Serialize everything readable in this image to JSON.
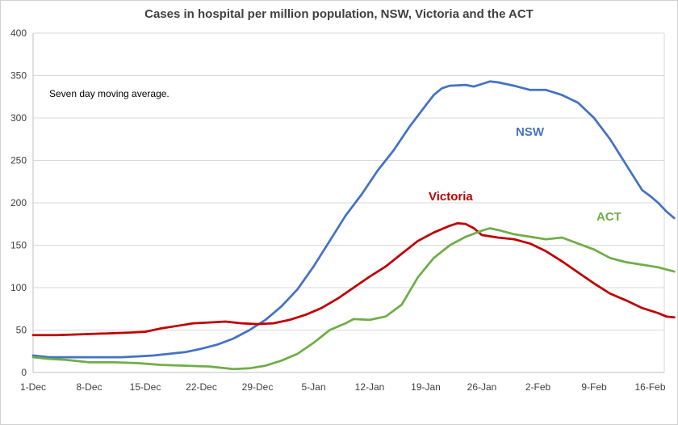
{
  "chart_data": {
    "type": "line",
    "title": "Cases in hospital per million population, NSW, Victoria and the ACT",
    "annotation": "Seven day moving average.",
    "xlabel": "",
    "ylabel": "",
    "ylim": [
      0,
      400
    ],
    "yticks": [
      0,
      50,
      100,
      150,
      200,
      250,
      300,
      350,
      400
    ],
    "grid": true,
    "legend": "inline labels",
    "x_tick_labels": [
      "1-Dec",
      "8-Dec",
      "15-Dec",
      "22-Dec",
      "29-Dec",
      "5-Jan",
      "12-Jan",
      "19-Jan",
      "26-Jan",
      "2-Feb",
      "9-Feb",
      "16-Feb"
    ],
    "x_tick_dates": [
      "2021-12-01",
      "2021-12-08",
      "2021-12-15",
      "2021-12-22",
      "2021-12-29",
      "2022-01-05",
      "2022-01-12",
      "2022-01-19",
      "2022-01-26",
      "2022-02-02",
      "2022-02-09",
      "2022-02-16"
    ],
    "x_range": [
      "2021-12-01",
      "2022-02-18"
    ],
    "series": [
      {
        "name": "NSW",
        "color": "#4472C4",
        "points": [
          [
            "2021-12-01",
            20
          ],
          [
            "2021-12-03",
            18
          ],
          [
            "2021-12-05",
            18
          ],
          [
            "2021-12-08",
            18
          ],
          [
            "2021-12-10",
            18
          ],
          [
            "2021-12-12",
            18
          ],
          [
            "2021-12-14",
            19
          ],
          [
            "2021-12-16",
            20
          ],
          [
            "2021-12-18",
            22
          ],
          [
            "2021-12-20",
            24
          ],
          [
            "2021-12-22",
            28
          ],
          [
            "2021-12-24",
            33
          ],
          [
            "2021-12-26",
            40
          ],
          [
            "2021-12-28",
            50
          ],
          [
            "2021-12-30",
            62
          ],
          [
            "2022-01-01",
            78
          ],
          [
            "2022-01-03",
            98
          ],
          [
            "2022-01-05",
            125
          ],
          [
            "2022-01-07",
            155
          ],
          [
            "2022-01-09",
            185
          ],
          [
            "2022-01-11",
            210
          ],
          [
            "2022-01-13",
            238
          ],
          [
            "2022-01-15",
            262
          ],
          [
            "2022-01-17",
            290
          ],
          [
            "2022-01-19",
            315
          ],
          [
            "2022-01-20",
            327
          ],
          [
            "2022-01-21",
            335
          ],
          [
            "2022-01-22",
            338
          ],
          [
            "2022-01-24",
            339
          ],
          [
            "2022-01-25",
            337
          ],
          [
            "2022-01-26",
            340
          ],
          [
            "2022-01-27",
            343
          ],
          [
            "2022-01-28",
            342
          ],
          [
            "2022-01-30",
            338
          ],
          [
            "2022-02-01",
            333
          ],
          [
            "2022-02-03",
            333
          ],
          [
            "2022-02-05",
            327
          ],
          [
            "2022-02-07",
            318
          ],
          [
            "2022-02-09",
            300
          ],
          [
            "2022-02-11",
            275
          ],
          [
            "2022-02-13",
            245
          ],
          [
            "2022-02-15",
            215
          ],
          [
            "2022-02-16",
            208
          ],
          [
            "2022-02-17",
            200
          ],
          [
            "2022-02-18",
            190
          ],
          [
            "2022-02-19",
            182
          ]
        ]
      },
      {
        "name": "Victoria",
        "color": "#C00000",
        "points": [
          [
            "2021-12-01",
            44
          ],
          [
            "2021-12-04",
            44
          ],
          [
            "2021-12-07",
            45
          ],
          [
            "2021-12-10",
            46
          ],
          [
            "2021-12-13",
            47
          ],
          [
            "2021-12-15",
            48
          ],
          [
            "2021-12-17",
            52
          ],
          [
            "2021-12-19",
            55
          ],
          [
            "2021-12-21",
            58
          ],
          [
            "2021-12-23",
            59
          ],
          [
            "2021-12-25",
            60
          ],
          [
            "2021-12-27",
            58
          ],
          [
            "2021-12-29",
            57
          ],
          [
            "2021-12-31",
            58
          ],
          [
            "2022-01-02",
            62
          ],
          [
            "2022-01-04",
            68
          ],
          [
            "2022-01-06",
            76
          ],
          [
            "2022-01-08",
            87
          ],
          [
            "2022-01-10",
            100
          ],
          [
            "2022-01-12",
            113
          ],
          [
            "2022-01-14",
            125
          ],
          [
            "2022-01-16",
            140
          ],
          [
            "2022-01-18",
            155
          ],
          [
            "2022-01-20",
            165
          ],
          [
            "2022-01-22",
            173
          ],
          [
            "2022-01-23",
            176
          ],
          [
            "2022-01-24",
            175
          ],
          [
            "2022-01-25",
            170
          ],
          [
            "2022-01-26",
            162
          ],
          [
            "2022-01-28",
            159
          ],
          [
            "2022-01-30",
            157
          ],
          [
            "2022-02-01",
            152
          ],
          [
            "2022-02-03",
            143
          ],
          [
            "2022-02-05",
            131
          ],
          [
            "2022-02-07",
            118
          ],
          [
            "2022-02-09",
            105
          ],
          [
            "2022-02-11",
            93
          ],
          [
            "2022-02-13",
            85
          ],
          [
            "2022-02-15",
            76
          ],
          [
            "2022-02-17",
            70
          ],
          [
            "2022-02-18",
            66
          ],
          [
            "2022-02-19",
            65
          ]
        ]
      },
      {
        "name": "ACT",
        "color": "#70AD47",
        "points": [
          [
            "2021-12-01",
            18
          ],
          [
            "2021-12-03",
            16
          ],
          [
            "2021-12-05",
            15
          ],
          [
            "2021-12-08",
            12
          ],
          [
            "2021-12-11",
            12
          ],
          [
            "2021-12-14",
            11
          ],
          [
            "2021-12-17",
            9
          ],
          [
            "2021-12-20",
            8
          ],
          [
            "2021-12-23",
            7
          ],
          [
            "2021-12-26",
            4
          ],
          [
            "2021-12-28",
            5
          ],
          [
            "2021-12-30",
            8
          ],
          [
            "2022-01-01",
            14
          ],
          [
            "2022-01-03",
            22
          ],
          [
            "2022-01-05",
            35
          ],
          [
            "2022-01-07",
            50
          ],
          [
            "2022-01-09",
            58
          ],
          [
            "2022-01-10",
            63
          ],
          [
            "2022-01-12",
            62
          ],
          [
            "2022-01-14",
            66
          ],
          [
            "2022-01-16",
            80
          ],
          [
            "2022-01-18",
            112
          ],
          [
            "2022-01-20",
            135
          ],
          [
            "2022-01-22",
            150
          ],
          [
            "2022-01-24",
            160
          ],
          [
            "2022-01-26",
            167
          ],
          [
            "2022-01-27",
            170
          ],
          [
            "2022-01-28",
            168
          ],
          [
            "2022-01-30",
            163
          ],
          [
            "2022-02-01",
            160
          ],
          [
            "2022-02-03",
            157
          ],
          [
            "2022-02-05",
            159
          ],
          [
            "2022-02-07",
            152
          ],
          [
            "2022-02-09",
            145
          ],
          [
            "2022-02-11",
            135
          ],
          [
            "2022-02-13",
            130
          ],
          [
            "2022-02-15",
            127
          ],
          [
            "2022-02-17",
            124
          ],
          [
            "2022-02-19",
            119
          ]
        ]
      }
    ]
  }
}
